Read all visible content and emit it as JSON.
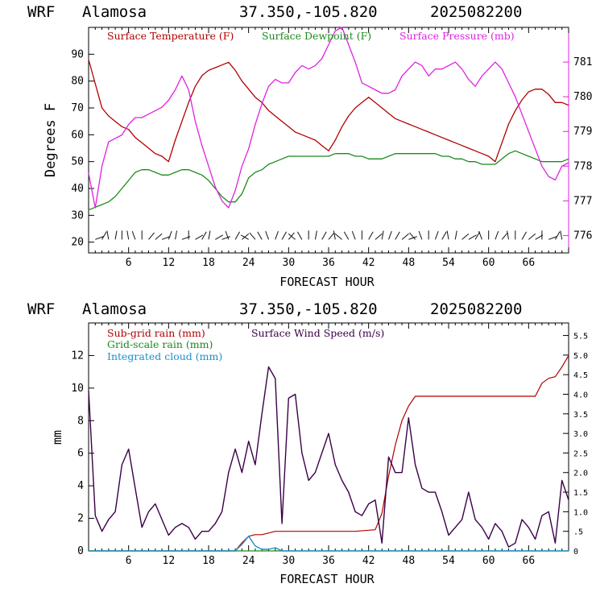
{
  "panel1": {
    "header": {
      "model": "WRF",
      "site": "Alamosa",
      "coords": "37.350,-105.820",
      "run": "2025082200"
    },
    "xlabel": "FORECAST HOUR",
    "ylabel": "Degrees F",
    "legend": {
      "temp": "Surface Temperature (F)",
      "dew": "Surface Dewpoint (F)",
      "pres": "Surface Pressure (mb)"
    },
    "xticks": [
      "6",
      "12",
      "18",
      "24",
      "30",
      "36",
      "42",
      "48",
      "54",
      "60",
      "66"
    ],
    "yticks": [
      "20",
      "30",
      "40",
      "50",
      "60",
      "70",
      "80",
      "90"
    ],
    "rticks": [
      "776",
      "777",
      "778",
      "779",
      "780",
      "781"
    ]
  },
  "panel2": {
    "header": {
      "model": "WRF",
      "site": "Alamosa",
      "coords": "37.350,-105.820",
      "run": "2025082200"
    },
    "xlabel": "FORECAST HOUR",
    "ylabel": "mm",
    "legend": {
      "subgrid": "Sub-grid rain (mm)",
      "gridscale": "Grid-scale rain (mm)",
      "cloud": "Integrated cloud (mm)",
      "wind": "Surface Wind Speed (m/s)"
    },
    "xticks": [
      "6",
      "12",
      "18",
      "24",
      "30",
      "36",
      "42",
      "48",
      "54",
      "60",
      "66"
    ],
    "yticks": [
      "0",
      "2",
      "4",
      "6",
      "8",
      "10",
      "12"
    ],
    "rticks": [
      "0",
      ".5",
      "1.0",
      "1.5",
      "2.0",
      "2.5",
      "3.0",
      "3.5",
      "4.0",
      "4.5",
      "5.0",
      "5.5"
    ]
  },
  "colors": {
    "temp": "#b00000",
    "dew": "#1a8a1a",
    "pres": "#e020e0",
    "wind": "#3a0048",
    "cloud": "#1e90c8",
    "axis": "#000000"
  },
  "chart_data": [
    {
      "type": "line",
      "xlim": [
        0,
        72
      ],
      "ylim_left": [
        16,
        100
      ],
      "ylim_right": [
        775.5,
        782.0
      ],
      "series": [
        {
          "name": "Surface Temperature (F)",
          "axis": "left",
          "x": [
            0,
            1,
            2,
            3,
            4,
            5,
            6,
            7,
            8,
            9,
            10,
            11,
            12,
            13,
            14,
            15,
            16,
            17,
            18,
            19,
            20,
            21,
            22,
            23,
            24,
            25,
            26,
            27,
            28,
            29,
            30,
            31,
            32,
            33,
            34,
            35,
            36,
            37,
            38,
            39,
            40,
            41,
            42,
            43,
            44,
            45,
            46,
            47,
            48,
            49,
            50,
            51,
            52,
            53,
            54,
            55,
            56,
            57,
            58,
            59,
            60,
            61,
            62,
            63,
            64,
            65,
            66,
            67,
            68,
            69,
            70,
            71,
            72
          ],
          "y": [
            88,
            79,
            70,
            67,
            65,
            63,
            62,
            59,
            57,
            55,
            53,
            52,
            50,
            58,
            65,
            72,
            78,
            82,
            84,
            85,
            86,
            87,
            84,
            80,
            77,
            74,
            72,
            69,
            67,
            65,
            63,
            61,
            60,
            59,
            58,
            56,
            54,
            58,
            63,
            67,
            70,
            72,
            74,
            72,
            70,
            68,
            66,
            65,
            64,
            63,
            62,
            61,
            60,
            59,
            58,
            57,
            56,
            55,
            54,
            53,
            52,
            50,
            57,
            64,
            69,
            73,
            76,
            77,
            77,
            75,
            72,
            72,
            71
          ]
        },
        {
          "name": "Surface Dewpoint (F)",
          "axis": "left",
          "x": [
            0,
            1,
            2,
            3,
            4,
            5,
            6,
            7,
            8,
            9,
            10,
            11,
            12,
            13,
            14,
            15,
            16,
            17,
            18,
            19,
            20,
            21,
            22,
            23,
            24,
            25,
            26,
            27,
            28,
            29,
            30,
            31,
            32,
            33,
            34,
            35,
            36,
            37,
            38,
            39,
            40,
            41,
            42,
            43,
            44,
            45,
            46,
            47,
            48,
            49,
            50,
            51,
            52,
            53,
            54,
            55,
            56,
            57,
            58,
            59,
            60,
            61,
            62,
            63,
            64,
            65,
            66,
            67,
            68,
            69,
            70,
            71,
            72
          ],
          "y": [
            32,
            33,
            34,
            35,
            37,
            40,
            43,
            46,
            47,
            47,
            46,
            45,
            45,
            46,
            47,
            47,
            46,
            45,
            43,
            40,
            37,
            35,
            35,
            38,
            44,
            46,
            47,
            49,
            50,
            51,
            52,
            52,
            52,
            52,
            52,
            52,
            52,
            53,
            53,
            53,
            52,
            52,
            51,
            51,
            51,
            52,
            53,
            53,
            53,
            53,
            53,
            53,
            53,
            52,
            52,
            51,
            51,
            50,
            50,
            49,
            49,
            49,
            51,
            53,
            54,
            53,
            52,
            51,
            50,
            50,
            50,
            50,
            51
          ]
        },
        {
          "name": "Surface Pressure (mb)",
          "axis": "right",
          "x": [
            0,
            0.5,
            1,
            2,
            3,
            4,
            5,
            6,
            7,
            8,
            9,
            10,
            11,
            12,
            13,
            14,
            15,
            16,
            17,
            18,
            19,
            20,
            21,
            22,
            23,
            24,
            25,
            26,
            27,
            28,
            29,
            30,
            31,
            32,
            33,
            34,
            35,
            36,
            37,
            38,
            39,
            40,
            41,
            42,
            43,
            44,
            45,
            46,
            47,
            48,
            49,
            50,
            51,
            52,
            53,
            54,
            55,
            56,
            57,
            58,
            59,
            60,
            61,
            62,
            63,
            64,
            65,
            66,
            67,
            68,
            69,
            70,
            71,
            72
          ],
          "y": [
            777.8,
            777.3,
            776.8,
            778.0,
            778.7,
            778.8,
            778.9,
            779.2,
            779.4,
            779.4,
            779.5,
            779.6,
            779.7,
            779.9,
            780.2,
            780.6,
            780.2,
            779.3,
            778.6,
            778.0,
            777.4,
            777.0,
            776.8,
            777.3,
            778.0,
            778.5,
            779.2,
            779.8,
            780.3,
            780.5,
            780.4,
            780.4,
            780.7,
            780.9,
            780.8,
            780.9,
            781.1,
            781.5,
            781.9,
            782.0,
            781.5,
            781.0,
            780.4,
            780.3,
            780.2,
            780.1,
            780.1,
            780.2,
            780.6,
            780.8,
            781.0,
            780.9,
            780.6,
            780.8,
            780.8,
            780.9,
            781.0,
            780.8,
            780.5,
            780.3,
            780.6,
            780.8,
            781.0,
            780.8,
            780.4,
            780.0,
            779.5,
            779.0,
            778.5,
            778.0,
            777.7,
            777.6,
            778.0,
            778.1
          ]
        }
      ]
    },
    {
      "type": "line",
      "xlim": [
        0,
        72
      ],
      "ylim_left": [
        0,
        14
      ],
      "ylim_right": [
        0,
        5.82
      ],
      "series": [
        {
          "name": "Sub-grid rain (mm)",
          "axis": "left",
          "x": [
            0,
            22,
            23,
            24,
            25,
            26,
            27,
            28,
            29,
            30,
            35,
            40,
            43,
            44,
            45,
            46,
            47,
            48,
            49,
            50,
            55,
            60,
            62,
            63,
            64,
            65,
            66,
            67,
            68,
            69,
            70,
            71,
            72
          ],
          "y": [
            0,
            0,
            0.5,
            0.9,
            1.0,
            1.0,
            1.1,
            1.2,
            1.2,
            1.2,
            1.2,
            1.2,
            1.3,
            2.3,
            4.6,
            6.5,
            8.0,
            8.9,
            9.5,
            9.5,
            9.5,
            9.5,
            9.5,
            9.5,
            9.5,
            9.5,
            9.5,
            9.5,
            10.3,
            10.6,
            10.7,
            11.3,
            12.0
          ]
        },
        {
          "name": "Grid-scale rain (mm)",
          "axis": "left",
          "x": [
            0,
            72
          ],
          "y": [
            0,
            0
          ]
        },
        {
          "name": "Integrated cloud (mm)",
          "axis": "left",
          "x": [
            0,
            22,
            23,
            24,
            25,
            26,
            27,
            28,
            29,
            72
          ],
          "y": [
            0,
            0,
            0.4,
            0.9,
            0.3,
            0.1,
            0.1,
            0.2,
            0,
            0
          ]
        },
        {
          "name": "Surface Wind Speed (m/s)",
          "axis": "right",
          "x": [
            0,
            1,
            2,
            3,
            4,
            5,
            6,
            7,
            8,
            9,
            10,
            11,
            12,
            13,
            14,
            15,
            16,
            17,
            18,
            19,
            20,
            21,
            22,
            23,
            24,
            25,
            26,
            27,
            28,
            29,
            30,
            31,
            32,
            33,
            34,
            35,
            36,
            37,
            38,
            39,
            40,
            41,
            42,
            43,
            44,
            45,
            46,
            47,
            48,
            49,
            50,
            51,
            52,
            53,
            54,
            55,
            56,
            57,
            58,
            59,
            60,
            61,
            62,
            63,
            64,
            65,
            66,
            67,
            68,
            69,
            70,
            71,
            72
          ],
          "y": [
            4.1,
            0.9,
            0.5,
            0.8,
            1.0,
            2.2,
            2.6,
            1.6,
            0.6,
            1.0,
            1.2,
            0.8,
            0.4,
            0.6,
            0.7,
            0.6,
            0.3,
            0.5,
            0.5,
            0.7,
            1.0,
            2.0,
            2.6,
            2.0,
            2.8,
            2.2,
            3.5,
            4.7,
            4.4,
            0.7,
            3.9,
            4.0,
            2.5,
            1.8,
            2.0,
            2.5,
            3.0,
            2.2,
            1.8,
            1.5,
            1.0,
            0.9,
            1.2,
            1.3,
            0.2,
            2.4,
            2.0,
            2.0,
            3.4,
            2.2,
            1.6,
            1.5,
            1.5,
            1.0,
            0.4,
            0.6,
            0.8,
            1.5,
            0.8,
            0.6,
            0.3,
            0.7,
            0.5,
            0.1,
            0.2,
            0.8,
            0.6,
            0.3,
            0.9,
            1.0,
            0.2,
            1.8,
            1.3
          ]
        }
      ]
    }
  ]
}
